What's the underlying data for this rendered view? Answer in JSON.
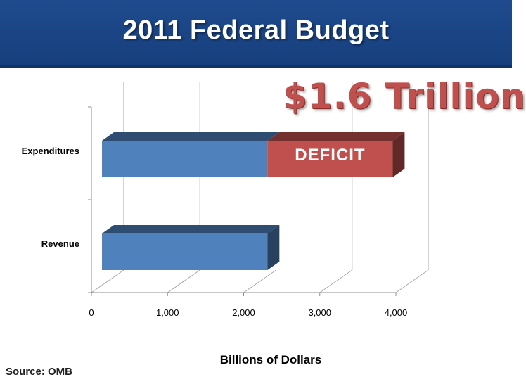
{
  "slide": {
    "title": "2011 Federal Budget",
    "callout": "$1.6 Trillion",
    "source": "Source: OMB"
  },
  "colors": {
    "header": "#1f4b8e",
    "bar_blue": "#4f81bd",
    "deficit_red": "#c0504d"
  },
  "chart_data": {
    "type": "bar",
    "orientation": "horizontal",
    "stacked": true,
    "three_d": true,
    "categories": [
      "Expenditures",
      "Revenue"
    ],
    "series": [
      {
        "values": [
          2174,
          2174
        ],
        "color": "#4f81bd"
      },
      {
        "values": [
          1645,
          0
        ],
        "color": "#c0504d"
      }
    ],
    "bar_annotation": {
      "category": "Expenditures",
      "text": "DEFICIT"
    },
    "xlabel": "Billions of Dollars",
    "ylabel": "",
    "xlim": [
      0,
      4000
    ],
    "xticks": [
      0,
      1000,
      2000,
      3000,
      4000
    ],
    "xtick_labels": [
      "0",
      "1,000",
      "2,000",
      "3,000",
      "4,000"
    ],
    "grid": true,
    "legend": "none"
  }
}
